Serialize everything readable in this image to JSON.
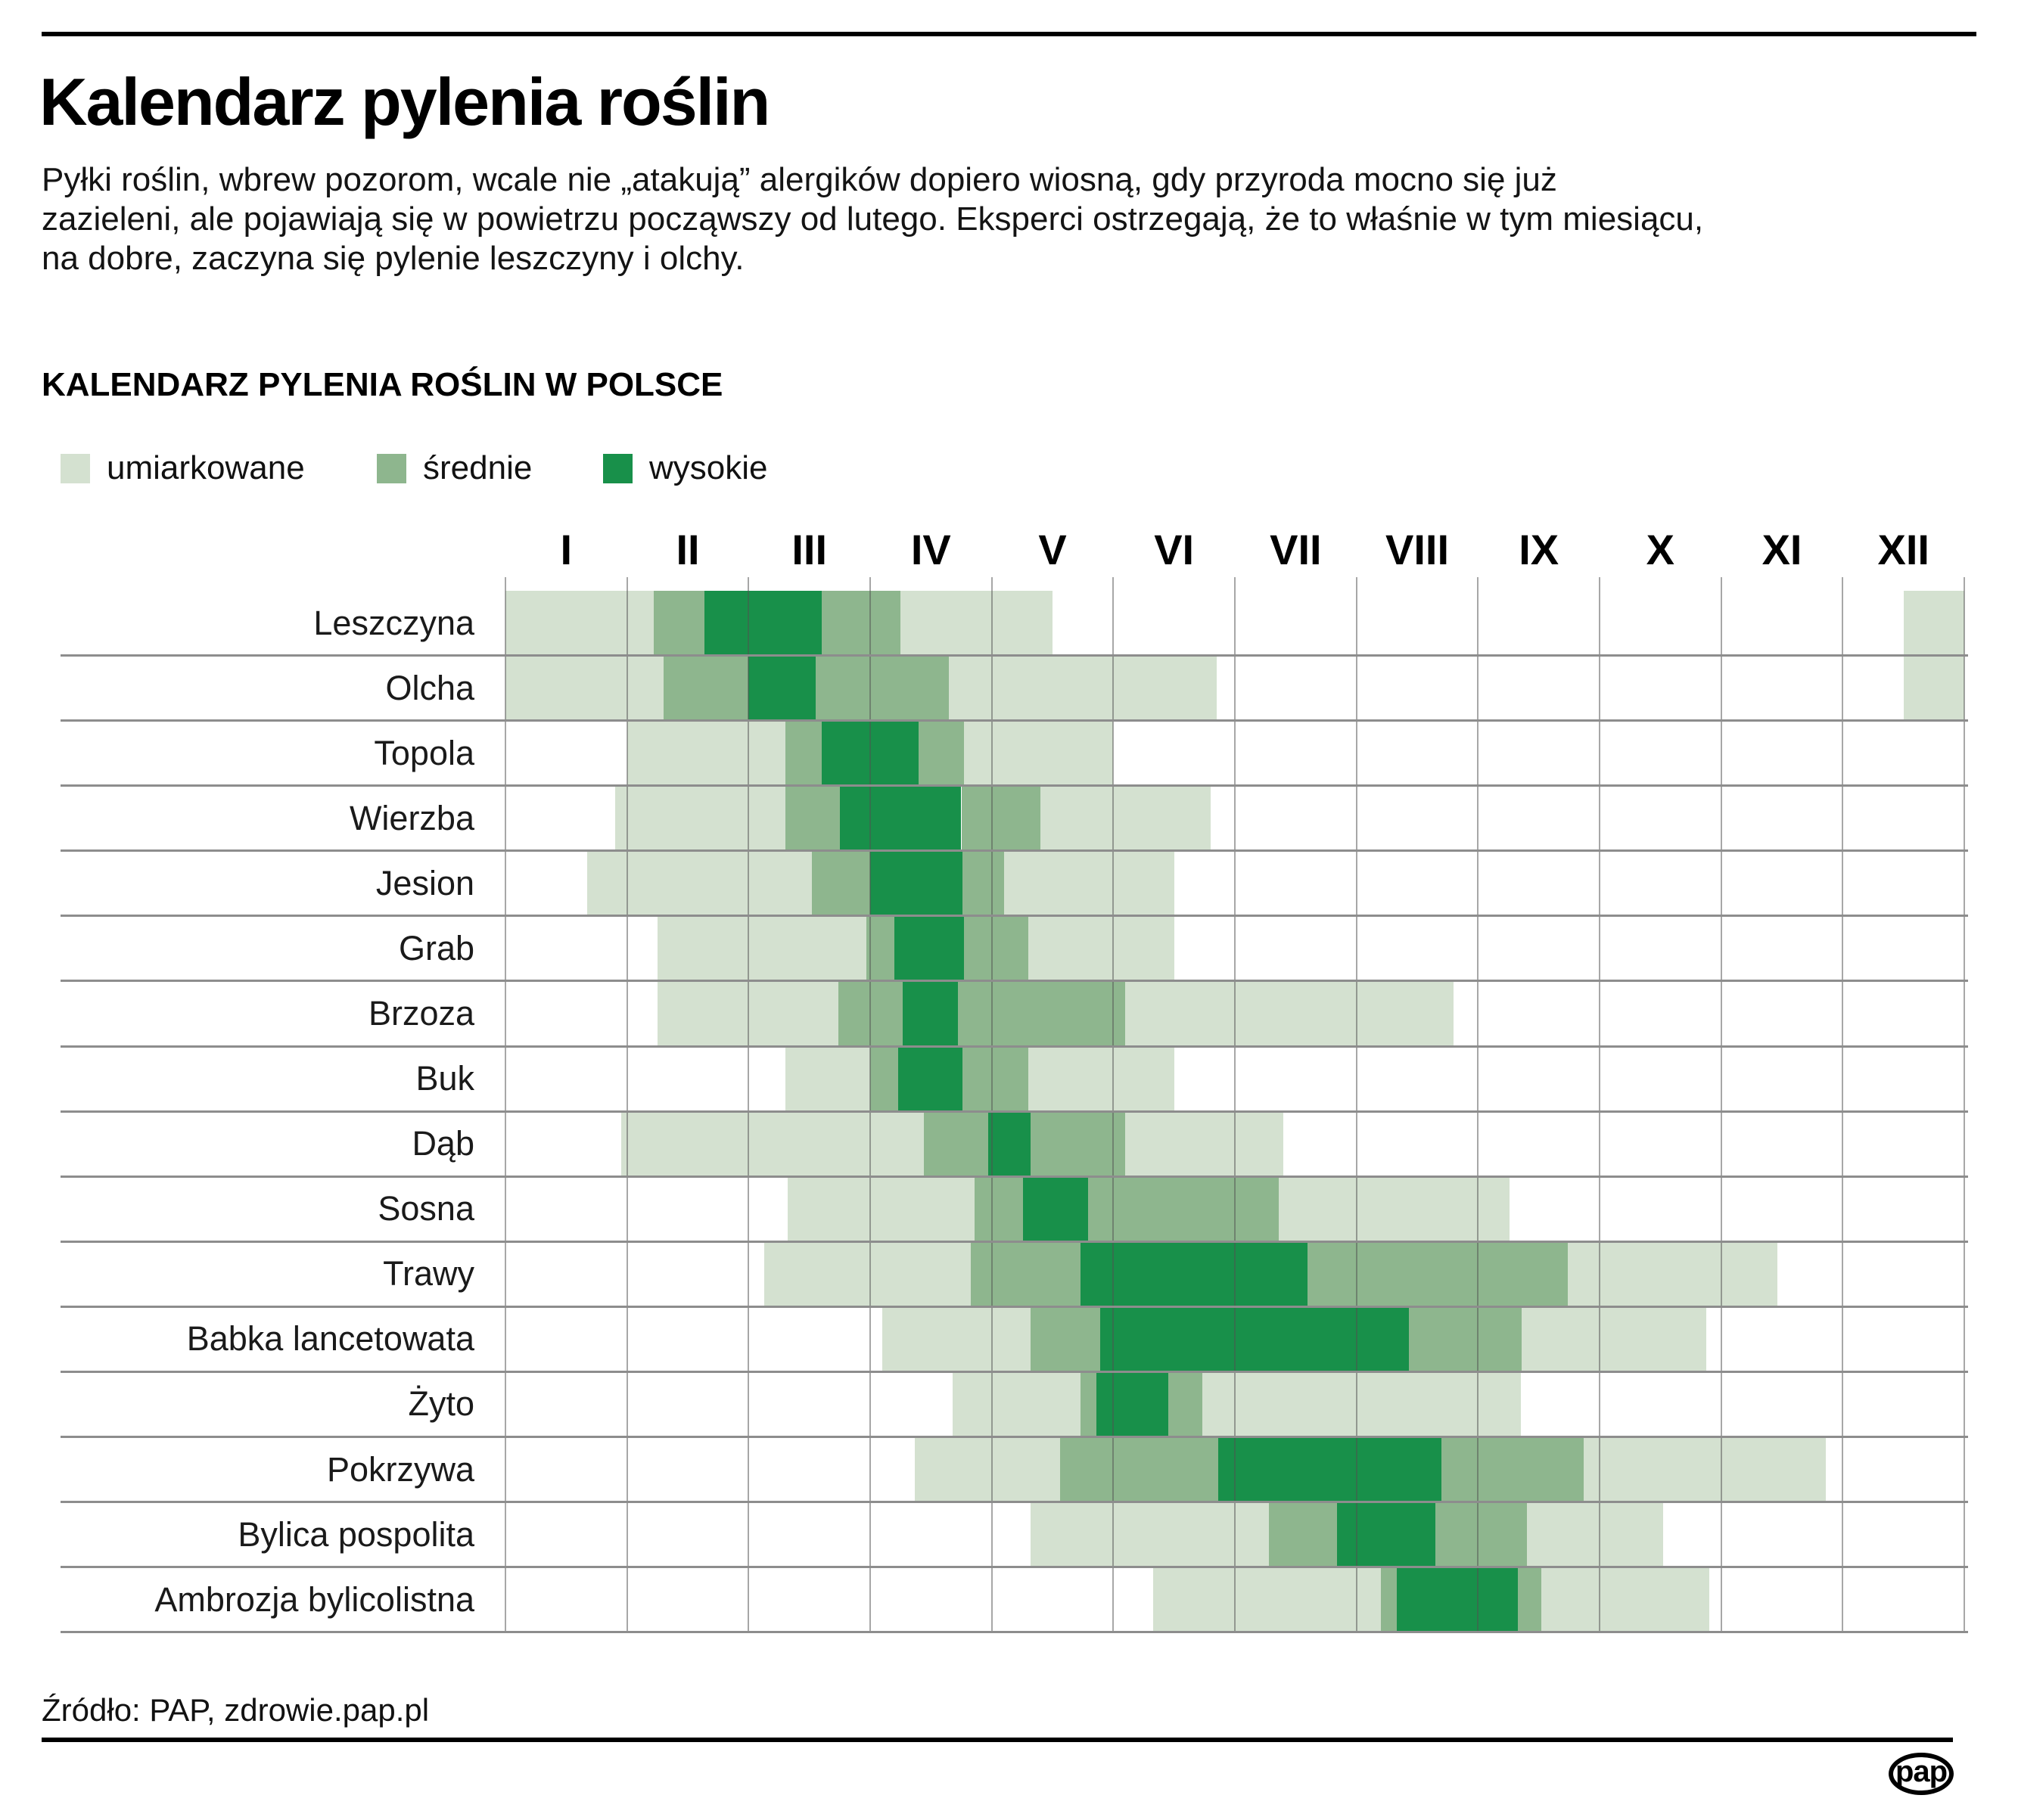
{
  "header": {
    "title": "Kalendarz pylenia roślin",
    "intro_lines": [
      "Pyłki roślin, wbrew pozorom, wcale nie „atakują” alergików dopiero wiosną, gdy przyroda mocno się już",
      "zazieleni, ale pojawiają się w powietrzu począwszy od lutego. Eksperci ostrzegają, że to właśnie w tym miesiącu,",
      "na dobre, zaczyna się pylenie leszczyny i olchy."
    ]
  },
  "section": {
    "heading": "KALENDARZ PYLENIA ROŚLIN W POLSCE"
  },
  "legend": {
    "items": [
      {
        "id": "light",
        "label": "umiarkowane",
        "color": "#d4e1d0"
      },
      {
        "id": "medium",
        "label": "średnie",
        "color": "#8eb68e"
      },
      {
        "id": "high",
        "label": "wysokie",
        "color": "#18904a"
      }
    ]
  },
  "chart_data": {
    "type": "heatmap",
    "title": "KALENDARZ PYLENIA ROŚLIN W POLSCE",
    "x_axis": {
      "ticks": [
        "I",
        "II",
        "III",
        "IV",
        "V",
        "VI",
        "VII",
        "VIII",
        "IX",
        "X",
        "XI",
        "XII"
      ],
      "range": [
        0,
        12
      ]
    },
    "levels": {
      "light": {
        "label": "umiarkowane",
        "color": "#d4e1d0"
      },
      "medium": {
        "label": "średnie",
        "color": "#8eb68e"
      },
      "high": {
        "label": "wysokie",
        "color": "#18904a"
      }
    },
    "units": "segment start/end in months: 0 = start of January, 12 = end of December",
    "rows": [
      {
        "plant": "Leszczyna",
        "segments": [
          {
            "level": "light",
            "start": 0,
            "end": 1.22
          },
          {
            "level": "medium",
            "start": 1.22,
            "end": 1.64
          },
          {
            "level": "high",
            "start": 1.64,
            "end": 2.6
          },
          {
            "level": "medium",
            "start": 2.6,
            "end": 3.25
          },
          {
            "level": "light",
            "start": 3.25,
            "end": 4.5
          },
          {
            "level": "light",
            "start": 11.5,
            "end": 12
          }
        ]
      },
      {
        "plant": "Olcha",
        "segments": [
          {
            "level": "light",
            "start": 0,
            "end": 1.3
          },
          {
            "level": "medium",
            "start": 1.3,
            "end": 2.0
          },
          {
            "level": "high",
            "start": 2.0,
            "end": 2.55
          },
          {
            "level": "medium",
            "start": 2.55,
            "end": 3.65
          },
          {
            "level": "light",
            "start": 3.65,
            "end": 5.85
          },
          {
            "level": "light",
            "start": 11.5,
            "end": 12
          }
        ]
      },
      {
        "plant": "Topola",
        "segments": [
          {
            "level": "light",
            "start": 1.0,
            "end": 2.3
          },
          {
            "level": "medium",
            "start": 2.3,
            "end": 2.6
          },
          {
            "level": "high",
            "start": 2.6,
            "end": 3.4
          },
          {
            "level": "medium",
            "start": 3.4,
            "end": 3.77
          },
          {
            "level": "light",
            "start": 3.77,
            "end": 5.0
          }
        ]
      },
      {
        "plant": "Wierzba",
        "segments": [
          {
            "level": "light",
            "start": 0.9,
            "end": 2.3
          },
          {
            "level": "medium",
            "start": 2.3,
            "end": 2.75
          },
          {
            "level": "high",
            "start": 2.75,
            "end": 3.75
          },
          {
            "level": "medium",
            "start": 3.75,
            "end": 4.4
          },
          {
            "level": "light",
            "start": 4.4,
            "end": 5.8
          }
        ]
      },
      {
        "plant": "Jesion",
        "segments": [
          {
            "level": "light",
            "start": 0.67,
            "end": 2.52
          },
          {
            "level": "medium",
            "start": 2.52,
            "end": 3.0
          },
          {
            "level": "high",
            "start": 3.0,
            "end": 3.76
          },
          {
            "level": "medium",
            "start": 3.76,
            "end": 4.1
          },
          {
            "level": "light",
            "start": 4.1,
            "end": 5.5
          }
        ]
      },
      {
        "plant": "Grab",
        "segments": [
          {
            "level": "light",
            "start": 1.25,
            "end": 2.97
          },
          {
            "level": "medium",
            "start": 2.97,
            "end": 3.2
          },
          {
            "level": "high",
            "start": 3.2,
            "end": 3.77
          },
          {
            "level": "medium",
            "start": 3.77,
            "end": 4.3
          },
          {
            "level": "light",
            "start": 4.3,
            "end": 5.5
          }
        ]
      },
      {
        "plant": "Brzoza",
        "segments": [
          {
            "level": "light",
            "start": 1.25,
            "end": 2.74
          },
          {
            "level": "medium",
            "start": 2.74,
            "end": 3.27
          },
          {
            "level": "high",
            "start": 3.27,
            "end": 3.72
          },
          {
            "level": "medium",
            "start": 3.72,
            "end": 5.1
          },
          {
            "level": "light",
            "start": 5.1,
            "end": 7.8
          }
        ]
      },
      {
        "plant": "Buk",
        "segments": [
          {
            "level": "light",
            "start": 2.3,
            "end": 3.0
          },
          {
            "level": "medium",
            "start": 3.0,
            "end": 3.23
          },
          {
            "level": "high",
            "start": 3.23,
            "end": 3.76
          },
          {
            "level": "medium",
            "start": 3.76,
            "end": 4.3
          },
          {
            "level": "light",
            "start": 4.3,
            "end": 5.5
          }
        ]
      },
      {
        "plant": "Dąb",
        "segments": [
          {
            "level": "light",
            "start": 0.95,
            "end": 3.44
          },
          {
            "level": "medium",
            "start": 3.44,
            "end": 3.97
          },
          {
            "level": "high",
            "start": 3.97,
            "end": 4.32
          },
          {
            "level": "medium",
            "start": 4.32,
            "end": 5.1
          },
          {
            "level": "light",
            "start": 5.1,
            "end": 6.4
          }
        ]
      },
      {
        "plant": "Sosna",
        "segments": [
          {
            "level": "light",
            "start": 2.32,
            "end": 3.86
          },
          {
            "level": "medium",
            "start": 3.86,
            "end": 4.26
          },
          {
            "level": "high",
            "start": 4.26,
            "end": 4.79
          },
          {
            "level": "medium",
            "start": 4.79,
            "end": 6.36
          },
          {
            "level": "light",
            "start": 6.36,
            "end": 8.26
          }
        ]
      },
      {
        "plant": "Trawy",
        "segments": [
          {
            "level": "light",
            "start": 2.13,
            "end": 3.83
          },
          {
            "level": "medium",
            "start": 3.83,
            "end": 4.73
          },
          {
            "level": "high",
            "start": 4.73,
            "end": 6.6
          },
          {
            "level": "medium",
            "start": 6.6,
            "end": 8.74
          },
          {
            "level": "light",
            "start": 8.74,
            "end": 10.46
          }
        ]
      },
      {
        "plant": "Babka lancetowata",
        "segments": [
          {
            "level": "light",
            "start": 3.1,
            "end": 4.32
          },
          {
            "level": "medium",
            "start": 4.32,
            "end": 4.89
          },
          {
            "level": "high",
            "start": 4.89,
            "end": 7.43
          },
          {
            "level": "medium",
            "start": 7.43,
            "end": 8.36
          },
          {
            "level": "light",
            "start": 8.36,
            "end": 9.88
          }
        ]
      },
      {
        "plant": "Żyto",
        "segments": [
          {
            "level": "light",
            "start": 3.68,
            "end": 4.73
          },
          {
            "level": "medium",
            "start": 4.73,
            "end": 4.86
          },
          {
            "level": "high",
            "start": 4.86,
            "end": 5.45
          },
          {
            "level": "medium",
            "start": 5.45,
            "end": 5.73
          },
          {
            "level": "light",
            "start": 5.73,
            "end": 8.35
          }
        ]
      },
      {
        "plant": "Pokrzywa",
        "segments": [
          {
            "level": "light",
            "start": 3.37,
            "end": 4.56
          },
          {
            "level": "medium",
            "start": 4.56,
            "end": 5.86
          },
          {
            "level": "high",
            "start": 5.86,
            "end": 7.7
          },
          {
            "level": "medium",
            "start": 7.7,
            "end": 8.87
          },
          {
            "level": "light",
            "start": 8.87,
            "end": 10.86
          }
        ]
      },
      {
        "plant": "Bylica pospolita",
        "segments": [
          {
            "level": "light",
            "start": 4.32,
            "end": 6.28
          },
          {
            "level": "medium",
            "start": 6.28,
            "end": 6.84
          },
          {
            "level": "high",
            "start": 6.84,
            "end": 7.65
          },
          {
            "level": "medium",
            "start": 7.65,
            "end": 8.4
          },
          {
            "level": "light",
            "start": 8.4,
            "end": 9.52
          }
        ]
      },
      {
        "plant": "Ambrozja bylicolistna",
        "segments": [
          {
            "level": "light",
            "start": 5.33,
            "end": 7.2
          },
          {
            "level": "medium",
            "start": 7.2,
            "end": 7.33
          },
          {
            "level": "high",
            "start": 7.33,
            "end": 8.33
          },
          {
            "level": "medium",
            "start": 8.33,
            "end": 8.52
          },
          {
            "level": "light",
            "start": 8.52,
            "end": 9.9
          }
        ]
      }
    ]
  },
  "footer": {
    "source": "Źródło: PAP, zdrowie.pap.pl",
    "logo_text": "pap"
  }
}
